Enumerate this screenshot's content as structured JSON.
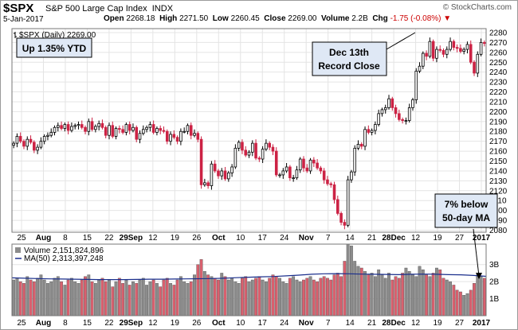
{
  "header": {
    "ticker": "$SPX",
    "name": "S&P 500 Large Cap Index",
    "exchange": "INDX",
    "date": "5-Jan-2017",
    "open_label": "Open",
    "open": "2268.18",
    "high_label": "High",
    "high": "2271.50",
    "low_label": "Low",
    "low": "2260.45",
    "close_label": "Close",
    "close": "2269.00",
    "volume_label": "Volume",
    "volume": "2.2B",
    "chg_label": "Chg",
    "chg": "-1.75 (-0.08%)",
    "credit": "© StockCharts.com"
  },
  "price_panel": {
    "legend": "$SPX (Daily) 2269.00"
  },
  "annotations": {
    "ytd": "Up 1.35% YTD",
    "record_line1": "Dec 13th",
    "record_line2": "Record Close",
    "below_line1": "7% below",
    "below_line2": "50-day MA"
  },
  "volume_panel": {
    "legend_volume": "Volume 2,151,824,896",
    "legend_ma": "MA(50) 2,313,397,248"
  },
  "colors": {
    "up": "#ffffff",
    "down": "#cc2244",
    "volume_up": "#8c8c8c",
    "volume_down": "#d9606e",
    "ma_line": "#1a2e8c",
    "annotation_fill": "#dfe8f5"
  },
  "chart_data": {
    "type": "candlestick",
    "y_ticks": [
      2080,
      2090,
      2100,
      2110,
      2120,
      2130,
      2140,
      2150,
      2160,
      2170,
      2180,
      2190,
      2200,
      2210,
      2220,
      2230,
      2240,
      2250,
      2260,
      2270,
      2280
    ],
    "ylim": [
      2078,
      2284
    ],
    "x_ticks": [
      "25",
      "Aug",
      "8",
      "15",
      "22",
      "29Sep",
      "12",
      "19",
      "26",
      "Oct",
      "10",
      "17",
      "24",
      "Nov",
      "7",
      "14",
      "21",
      "28Dec",
      "12",
      "19",
      "27",
      "2017"
    ],
    "volume_ticks": [
      "1B",
      "2B",
      "3B"
    ],
    "volume_ylim": [
      0,
      4.2
    ],
    "closes": [
      2168,
      2175,
      2170,
      2165,
      2172,
      2169,
      2161,
      2164,
      2170,
      2175,
      2176,
      2179,
      2184,
      2186,
      2183,
      2187,
      2181,
      2185,
      2186,
      2187,
      2184,
      2180,
      2190,
      2182,
      2185,
      2188,
      2184,
      2176,
      2186,
      2175,
      2183,
      2182,
      2179,
      2187,
      2181,
      2184,
      2172,
      2178,
      2182,
      2184,
      2187,
      2179,
      2183,
      2181,
      2180,
      2170,
      2177,
      2174,
      2170,
      2180,
      2180,
      2186,
      2176,
      2178,
      2172,
      2126,
      2128,
      2125,
      2147,
      2140,
      2135,
      2140,
      2132,
      2138,
      2144,
      2163,
      2169,
      2161,
      2156,
      2159,
      2168,
      2153,
      2152,
      2162,
      2168,
      2164,
      2160,
      2136,
      2136,
      2140,
      2144,
      2133,
      2133,
      2141,
      2152,
      2143,
      2140,
      2151,
      2148,
      2143,
      2140,
      2131,
      2127,
      2126,
      2111,
      2097,
      2088,
      2085,
      2131,
      2139,
      2163,
      2167,
      2165,
      2182,
      2179,
      2181,
      2187,
      2198,
      2202,
      2204,
      2213,
      2204,
      2198,
      2192,
      2191,
      2191,
      2204,
      2212,
      2241,
      2246,
      2259,
      2256,
      2271,
      2254,
      2263,
      2262,
      2258,
      2263,
      2271,
      2265,
      2264,
      2261,
      2263,
      2268,
      2250,
      2239,
      2258,
      2270,
      2269
    ],
    "volume_billions": [
      2.1,
      2.2,
      2.0,
      1.9,
      2.3,
      2.1,
      2.0,
      2.2,
      2.4,
      2.1,
      1.9,
      2.0,
      2.2,
      2.3,
      2.0,
      1.8,
      2.1,
      2.2,
      2.0,
      1.9,
      2.1,
      2.3,
      2.4,
      2.0,
      1.9,
      2.1,
      2.2,
      2.0,
      2.1,
      1.7,
      2.0,
      2.2,
      1.9,
      2.1,
      1.8,
      2.0,
      1.9,
      2.1,
      2.2,
      1.8,
      2.0,
      2.1,
      1.9,
      1.7,
      2.1,
      2.2,
      1.9,
      1.8,
      2.1,
      2.3,
      2.0,
      1.9,
      2.0,
      2.4,
      3.0,
      3.3,
      2.6,
      2.4,
      2.3,
      2.2,
      2.1,
      2.5,
      2.3,
      2.1,
      2.2,
      2.0,
      1.9,
      2.2,
      2.3,
      2.0,
      2.1,
      2.2,
      2.3,
      2.1,
      2.0,
      2.2,
      2.4,
      2.3,
      2.2,
      2.0,
      1.9,
      2.2,
      2.3,
      2.1,
      2.0,
      2.1,
      2.2,
      2.3,
      2.1,
      2.0,
      2.2,
      2.3,
      2.2,
      2.1,
      2.4,
      2.5,
      2.3,
      3.2,
      4.3,
      4.1,
      3.2,
      2.9,
      2.8,
      2.6,
      2.4,
      2.5,
      2.3,
      2.7,
      2.4,
      2.2,
      2.5,
      2.1,
      2.3,
      2.2,
      2.5,
      2.8,
      2.6,
      2.4,
      2.3,
      2.9,
      2.7,
      2.4,
      2.3,
      2.5,
      2.8,
      2.7,
      2.2,
      2.1,
      2.0,
      1.8,
      1.5,
      1.4,
      1.2,
      1.3,
      1.5,
      1.9,
      2.4,
      2.3,
      2.2
    ],
    "ma50_billions": [
      2.22,
      2.2,
      2.18,
      2.16,
      2.15,
      2.14,
      2.13,
      2.12,
      2.12,
      2.12,
      2.13,
      2.14,
      2.14,
      2.15,
      2.16,
      2.17,
      2.18,
      2.2,
      2.23,
      2.26,
      2.28,
      2.3,
      2.34,
      2.38,
      2.43,
      2.46,
      2.47,
      2.46,
      2.44,
      2.43,
      2.42,
      2.41,
      2.43,
      2.44,
      2.43,
      2.41,
      2.4,
      2.36,
      2.31
    ]
  }
}
